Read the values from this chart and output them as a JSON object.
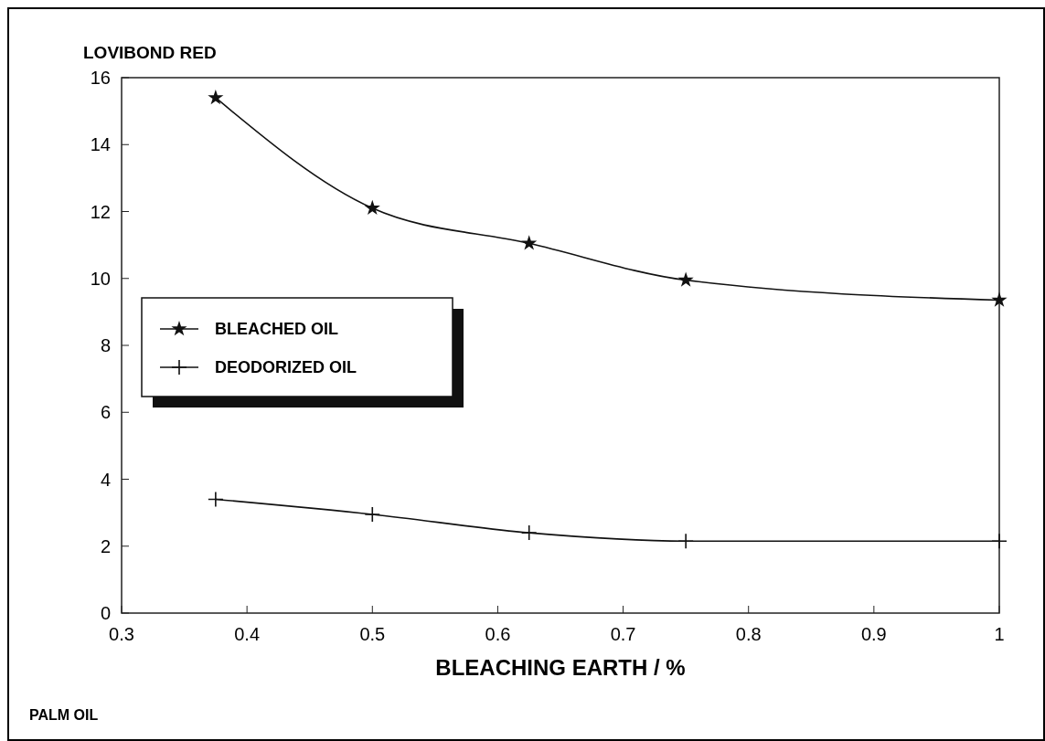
{
  "chart_data": {
    "type": "line",
    "ylabel": "LOVIBOND RED",
    "xlabel": "BLEACHING EARTH / %",
    "annotations": [
      "PALM OIL"
    ],
    "x": [
      0.375,
      0.5,
      0.625,
      0.75,
      1
    ],
    "xlim": [
      0.3,
      1
    ],
    "xticks": [
      0.3,
      0.4,
      0.5,
      0.6,
      0.7,
      0.8,
      0.9,
      1
    ],
    "ylim": [
      0,
      16
    ],
    "yticks": [
      0,
      2,
      4,
      6,
      8,
      10,
      12,
      14,
      16
    ],
    "grid": false,
    "legend": "left",
    "line_style": "solid",
    "series": [
      {
        "name": "BLEACHED OIL",
        "color": "#111111",
        "marker": "star",
        "values": [
          15.4,
          12.1,
          11.05,
          9.95,
          9.35
        ]
      },
      {
        "name": "DEODORIZED OIL",
        "color": "#111111",
        "marker": "cross",
        "values": [
          3.4,
          2.95,
          2.4,
          2.15,
          2.15
        ]
      }
    ]
  }
}
